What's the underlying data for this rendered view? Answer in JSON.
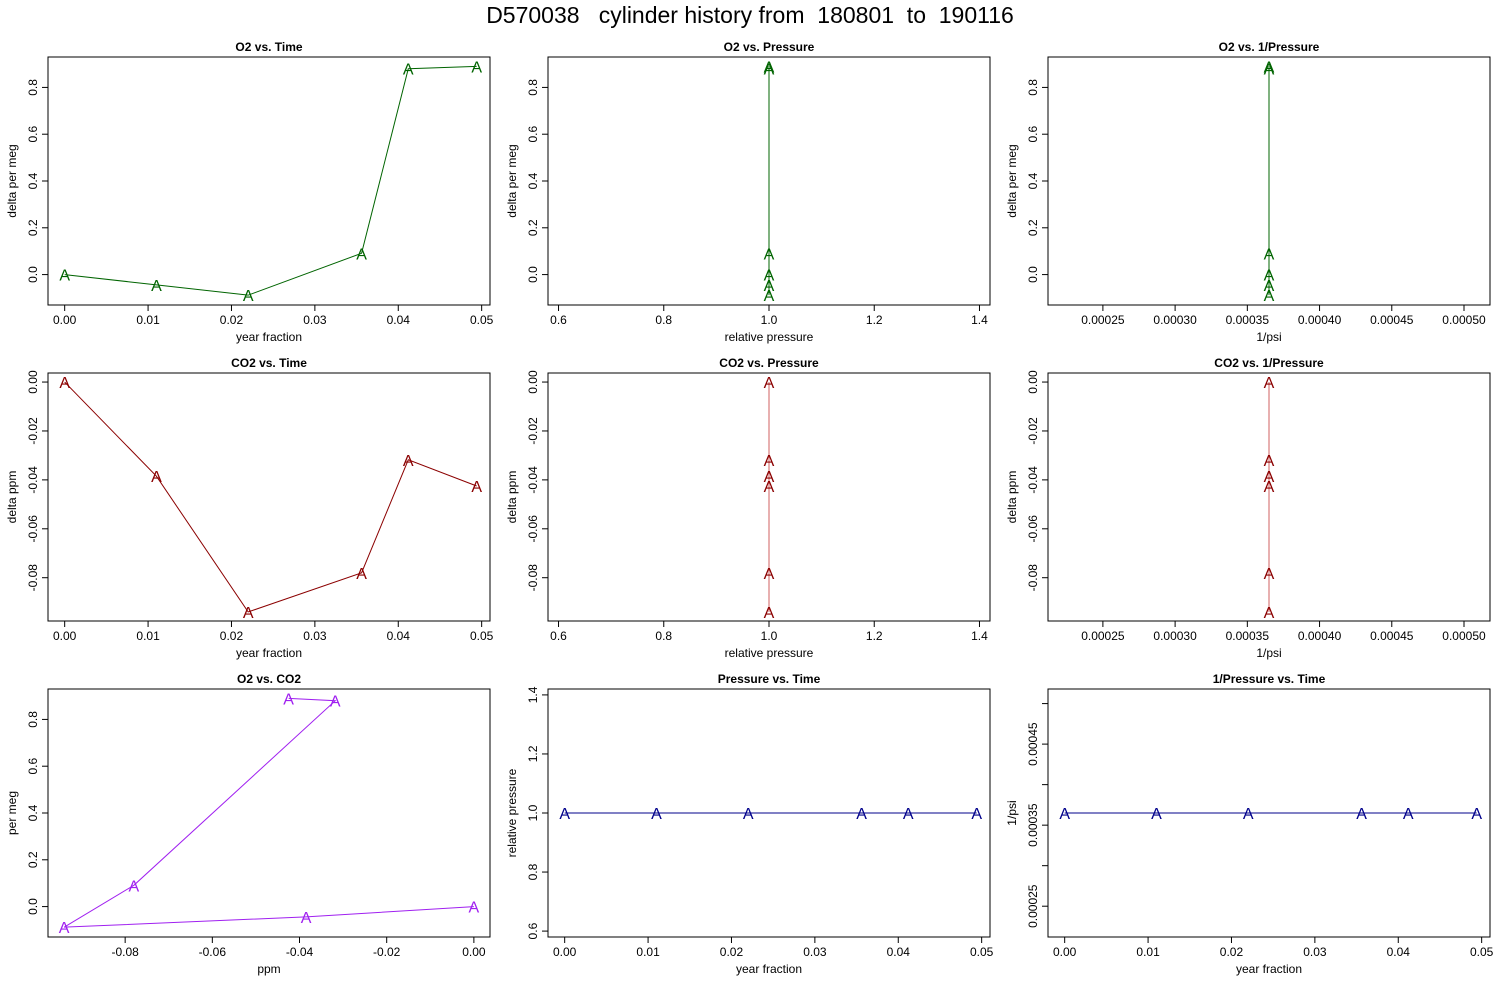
{
  "title": "D570038   cylinder history from  180801  to  190116",
  "chart_data": [
    {
      "type": "line",
      "title": "O2 vs. Time",
      "xlabel": "year fraction",
      "ylabel": "delta per meg",
      "color": "#006400",
      "marker": "A",
      "xlim": [
        -0.002,
        0.051
      ],
      "ylim": [
        -0.13,
        0.93
      ],
      "xticks": [
        0.0,
        0.01,
        0.02,
        0.03,
        0.04,
        0.05
      ],
      "xtick_labels": [
        "0.00",
        "0.01",
        "0.02",
        "0.03",
        "0.04",
        "0.05"
      ],
      "yticks": [
        0.0,
        0.2,
        0.4,
        0.6,
        0.8
      ],
      "ytick_labels": [
        "0.0",
        "0.2",
        "0.4",
        "0.6",
        "0.8"
      ],
      "x": [
        0.0,
        0.011,
        0.022,
        0.0356,
        0.0412,
        0.0494
      ],
      "y": [
        0.0,
        -0.044,
        -0.088,
        0.091,
        0.88,
        0.89
      ]
    },
    {
      "type": "line",
      "title": "O2 vs. Pressure",
      "xlabel": "relative pressure",
      "ylabel": "delta per meg",
      "color": "#006400",
      "marker": "A",
      "xlim": [
        0.58,
        1.42
      ],
      "ylim": [
        -0.13,
        0.93
      ],
      "xticks": [
        0.6,
        0.8,
        1.0,
        1.2,
        1.4
      ],
      "xtick_labels": [
        "0.6",
        "0.8",
        "1.0",
        "1.2",
        "1.4"
      ],
      "yticks": [
        0.0,
        0.2,
        0.4,
        0.6,
        0.8
      ],
      "ytick_labels": [
        "0.0",
        "0.2",
        "0.4",
        "0.6",
        "0.8"
      ],
      "x": [
        1.0,
        1.0,
        1.0,
        1.0,
        1.0,
        1.0
      ],
      "y": [
        0.0,
        -0.044,
        -0.088,
        0.091,
        0.88,
        0.89
      ]
    },
    {
      "type": "line",
      "title": "O2 vs. 1/Pressure",
      "xlabel": "1/psi",
      "ylabel": "delta per meg",
      "color": "#006400",
      "marker": "A",
      "xlim": [
        0.000212,
        0.000518
      ],
      "ylim": [
        -0.13,
        0.93
      ],
      "xticks": [
        0.00025,
        0.0003,
        0.00035,
        0.0004,
        0.00045,
        0.0005
      ],
      "xtick_labels": [
        "0.00025",
        "0.00030",
        "0.00035",
        "0.00040",
        "0.00045",
        "0.00050"
      ],
      "yticks": [
        0.0,
        0.2,
        0.4,
        0.6,
        0.8
      ],
      "ytick_labels": [
        "0.0",
        "0.2",
        "0.4",
        "0.6",
        "0.8"
      ],
      "x": [
        0.000365,
        0.000365,
        0.000365,
        0.000365,
        0.000365,
        0.000365
      ],
      "y": [
        0.0,
        -0.044,
        -0.088,
        0.091,
        0.88,
        0.89
      ]
    },
    {
      "type": "line",
      "title": "CO2 vs. Time",
      "xlabel": "year fraction",
      "ylabel": "delta ppm",
      "color": "#8b0000",
      "marker": "A",
      "xlim": [
        -0.002,
        0.051
      ],
      "ylim": [
        -0.0977,
        0.0037
      ],
      "xticks": [
        0.0,
        0.01,
        0.02,
        0.03,
        0.04,
        0.05
      ],
      "xtick_labels": [
        "0.00",
        "0.01",
        "0.02",
        "0.03",
        "0.04",
        "0.05"
      ],
      "yticks": [
        0.0,
        -0.02,
        -0.04,
        -0.06,
        -0.08
      ],
      "ytick_labels": [
        "0.00",
        "-0.02",
        "-0.04",
        "-0.06",
        "-0.08"
      ],
      "x": [
        0.0,
        0.011,
        0.022,
        0.0356,
        0.0412,
        0.0494
      ],
      "y": [
        0.0,
        -0.0385,
        -0.094,
        -0.078,
        -0.0318,
        -0.0425
      ]
    },
    {
      "type": "line",
      "title": "CO2 vs. Pressure",
      "xlabel": "relative pressure",
      "ylabel": "delta ppm",
      "color": "#8b0000",
      "marker": "A",
      "xlim": [
        0.58,
        1.42
      ],
      "ylim": [
        -0.0977,
        0.0037
      ],
      "xticks": [
        0.6,
        0.8,
        1.0,
        1.2,
        1.4
      ],
      "xtick_labels": [
        "0.6",
        "0.8",
        "1.0",
        "1.2",
        "1.4"
      ],
      "yticks": [
        0.0,
        -0.02,
        -0.04,
        -0.06,
        -0.08
      ],
      "ytick_labels": [
        "0.00",
        "-0.02",
        "-0.04",
        "-0.06",
        "-0.08"
      ],
      "x": [
        1.0,
        1.0,
        1.0,
        1.0,
        1.0,
        1.0
      ],
      "y": [
        0.0,
        -0.0385,
        -0.094,
        -0.078,
        -0.0318,
        -0.0425
      ]
    },
    {
      "type": "line",
      "title": "CO2 vs. 1/Pressure",
      "xlabel": "1/psi",
      "ylabel": "delta ppm",
      "color": "#8b0000",
      "marker": "A",
      "xlim": [
        0.000212,
        0.000518
      ],
      "ylim": [
        -0.0977,
        0.0037
      ],
      "xticks": [
        0.00025,
        0.0003,
        0.00035,
        0.0004,
        0.00045,
        0.0005
      ],
      "xtick_labels": [
        "0.00025",
        "0.00030",
        "0.00035",
        "0.00040",
        "0.00045",
        "0.00050"
      ],
      "yticks": [
        0.0,
        -0.02,
        -0.04,
        -0.06,
        -0.08
      ],
      "ytick_labels": [
        "0.00",
        "-0.02",
        "-0.04",
        "-0.06",
        "-0.08"
      ],
      "x": [
        0.000365,
        0.000365,
        0.000365,
        0.000365,
        0.000365,
        0.000365
      ],
      "y": [
        0.0,
        -0.0385,
        -0.094,
        -0.078,
        -0.0318,
        -0.0425
      ]
    },
    {
      "type": "line",
      "title": "O2 vs. CO2",
      "xlabel": "ppm",
      "ylabel": "per meg",
      "color": "#a020f0",
      "marker": "A",
      "xlim": [
        -0.0977,
        0.0037
      ],
      "ylim": [
        -0.13,
        0.93
      ],
      "xticks": [
        -0.08,
        -0.06,
        -0.04,
        -0.02,
        0.0
      ],
      "xtick_labels": [
        "-0.08",
        "-0.06",
        "-0.04",
        "-0.02",
        "0.00"
      ],
      "yticks": [
        0.0,
        0.2,
        0.4,
        0.6,
        0.8
      ],
      "ytick_labels": [
        "0.0",
        "0.2",
        "0.4",
        "0.6",
        "0.8"
      ],
      "x": [
        0.0,
        -0.0385,
        -0.094,
        -0.078,
        -0.0318,
        -0.0425
      ],
      "y": [
        0.0,
        -0.044,
        -0.088,
        0.091,
        0.88,
        0.89
      ]
    },
    {
      "type": "line",
      "title": "Pressure vs. Time",
      "xlabel": "year fraction",
      "ylabel": "relative pressure",
      "color": "#00008b",
      "marker": "A",
      "xlim": [
        -0.002,
        0.051
      ],
      "ylim": [
        0.58,
        1.42
      ],
      "xticks": [
        0.0,
        0.01,
        0.02,
        0.03,
        0.04,
        0.05
      ],
      "xtick_labels": [
        "0.00",
        "0.01",
        "0.02",
        "0.03",
        "0.04",
        "0.05"
      ],
      "yticks": [
        0.6,
        0.8,
        1.0,
        1.2,
        1.4
      ],
      "ytick_labels": [
        "0.6",
        "0.8",
        "1.0",
        "1.2",
        "1.4"
      ],
      "x": [
        0.0,
        0.011,
        0.022,
        0.0356,
        0.0412,
        0.0494
      ],
      "y": [
        1.0,
        1.0,
        1.0,
        1.0,
        1.0,
        1.0
      ]
    },
    {
      "type": "line",
      "title": "1/Pressure vs. Time",
      "xlabel": "year fraction",
      "ylabel": "1/psi",
      "color": "#00008b",
      "marker": "A",
      "xlim": [
        -0.002,
        0.051
      ],
      "ylim": [
        0.000212,
        0.000518
      ],
      "xticks": [
        0.0,
        0.01,
        0.02,
        0.03,
        0.04,
        0.05
      ],
      "xtick_labels": [
        "0.00",
        "0.01",
        "0.02",
        "0.03",
        "0.04",
        "0.05"
      ],
      "yticks": [
        0.00025,
        0.0003,
        0.00035,
        0.0004,
        0.00045,
        0.0005
      ],
      "ytick_labels": [
        "0.00025",
        "",
        "0.00035",
        "",
        "0.00045",
        ""
      ],
      "x": [
        0.0,
        0.011,
        0.022,
        0.0356,
        0.0412,
        0.0494
      ],
      "y": [
        0.000365,
        0.000365,
        0.000365,
        0.000365,
        0.000365,
        0.000365
      ]
    }
  ]
}
